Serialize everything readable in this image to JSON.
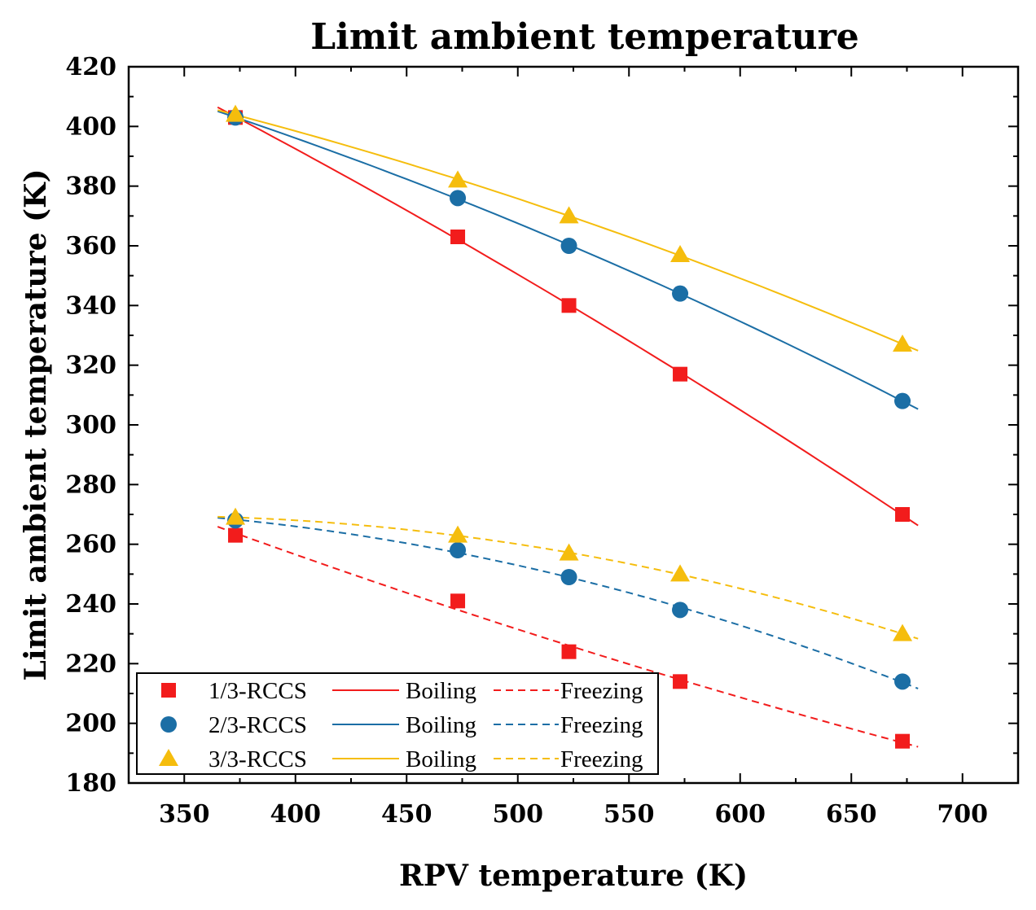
{
  "chart_data": {
    "type": "scatter",
    "title": "Limit ambient temperature",
    "xlabel": "RPV temperature (K)",
    "ylabel": "Limit ambient temperature (K)",
    "xlim": [
      325,
      725
    ],
    "ylim": [
      180,
      420
    ],
    "xticks": [
      350,
      400,
      450,
      500,
      550,
      600,
      650,
      700
    ],
    "yticks": [
      180,
      200,
      220,
      240,
      260,
      280,
      300,
      320,
      340,
      360,
      380,
      400,
      420
    ],
    "x": [
      373,
      473,
      523,
      573,
      673
    ],
    "fit_range": [
      365,
      680
    ],
    "legend_position": "bottom-left",
    "series": [
      {
        "name": "1/3-RCCS",
        "color": "#f21c1c",
        "marker": "square",
        "boiling": [
          403,
          363,
          340,
          317,
          270
        ],
        "freezing": [
          263,
          241,
          224,
          214,
          194
        ],
        "boiling_label": "Boiling",
        "freezing_label": "Freezing"
      },
      {
        "name": "2/3-RCCS",
        "color": "#1b6ea5",
        "marker": "circle",
        "boiling": [
          403,
          376,
          360,
          344,
          308
        ],
        "freezing": [
          268,
          258,
          249,
          238,
          214
        ],
        "boiling_label": "Boiling",
        "freezing_label": "Freezing"
      },
      {
        "name": "3/3-RCCS",
        "color": "#f5bd0d",
        "marker": "triangle",
        "boiling": [
          404,
          382,
          370,
          357,
          327
        ],
        "freezing": [
          269,
          263,
          257,
          250,
          230
        ],
        "boiling_label": "Boiling",
        "freezing_label": "Freezing"
      }
    ]
  }
}
